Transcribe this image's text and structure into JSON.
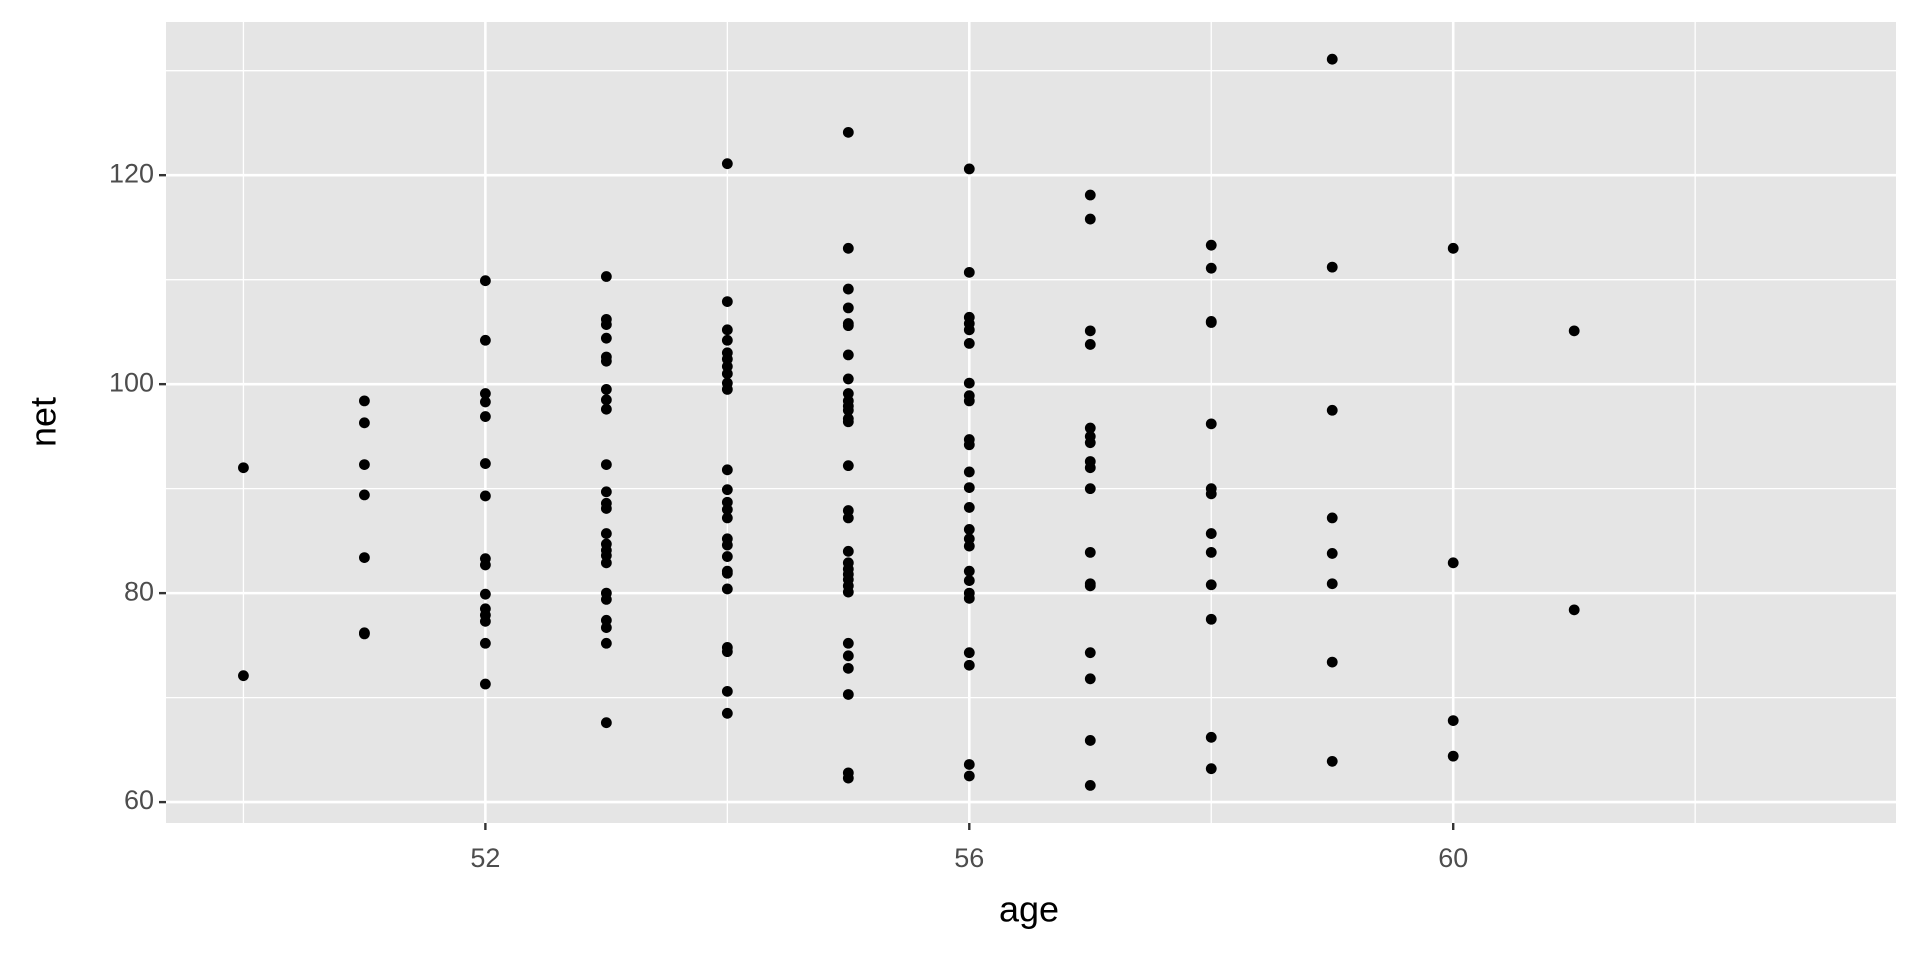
{
  "chart_data": {
    "type": "scatter",
    "x_label": "age",
    "y_label": "net",
    "x": [
      50,
      50,
      51,
      51,
      51,
      51,
      51,
      51,
      51,
      52,
      52,
      52,
      52,
      52,
      52,
      52,
      52,
      52,
      52,
      52,
      52,
      52,
      52,
      52,
      53,
      53,
      53,
      53,
      53,
      53,
      53,
      53,
      53,
      53,
      53,
      53,
      53,
      53,
      53,
      53,
      53,
      53,
      53,
      53,
      53,
      53,
      53,
      53,
      54,
      54,
      54,
      54,
      54,
      54,
      54,
      54,
      54,
      54,
      54,
      54,
      54,
      54,
      54,
      54,
      54,
      54,
      54,
      54,
      54,
      54,
      54,
      54,
      54,
      55,
      55,
      55,
      55,
      55,
      55,
      55,
      55,
      55,
      55,
      55,
      55,
      55,
      55,
      55,
      55,
      55,
      55,
      55,
      55,
      55,
      55,
      55,
      55,
      55,
      55,
      55,
      55,
      55,
      55,
      56,
      56,
      56,
      56,
      56,
      56,
      56,
      56,
      56,
      56,
      56,
      56,
      56,
      56,
      56,
      56,
      56,
      56,
      56,
      56,
      56,
      56,
      56,
      56,
      56,
      57,
      57,
      57,
      57,
      57,
      57,
      57,
      57,
      57,
      57,
      57,
      57,
      57,
      57,
      57,
      57,
      57,
      58,
      58,
      58,
      58,
      58,
      58,
      58,
      58,
      58,
      58,
      58,
      58,
      58,
      59,
      59,
      59,
      59,
      59,
      59,
      59,
      59,
      60,
      60,
      60,
      60,
      61,
      61
    ],
    "y": [
      92.0,
      72.1,
      98.4,
      96.3,
      92.3,
      89.4,
      83.4,
      76.2,
      76.1,
      109.9,
      104.2,
      99.1,
      98.3,
      96.9,
      92.4,
      89.3,
      83.3,
      82.7,
      79.9,
      78.5,
      77.9,
      77.3,
      75.2,
      71.3,
      110.3,
      106.2,
      105.7,
      104.4,
      102.6,
      102.2,
      99.5,
      98.5,
      97.6,
      92.3,
      89.7,
      88.6,
      88.1,
      85.7,
      84.7,
      84.1,
      83.6,
      82.9,
      80.0,
      79.4,
      77.4,
      76.7,
      75.2,
      67.6,
      121.1,
      107.9,
      105.2,
      104.2,
      103.0,
      102.4,
      101.7,
      101.0,
      100.1,
      99.5,
      91.8,
      89.9,
      88.7,
      88.0,
      87.2,
      85.2,
      84.6,
      83.5,
      82.1,
      81.9,
      80.4,
      74.8,
      74.4,
      70.6,
      68.5,
      124.1,
      113.0,
      109.1,
      107.3,
      105.8,
      105.6,
      102.8,
      100.5,
      99.1,
      98.4,
      97.9,
      97.5,
      96.7,
      96.4,
      92.2,
      87.9,
      87.2,
      84.0,
      82.9,
      82.3,
      81.8,
      81.3,
      80.7,
      80.1,
      75.2,
      74.0,
      72.8,
      70.3,
      62.8,
      62.3,
      120.6,
      110.7,
      106.4,
      105.8,
      105.2,
      103.9,
      100.1,
      98.9,
      98.4,
      94.7,
      94.2,
      91.6,
      90.1,
      88.2,
      86.1,
      85.2,
      84.5,
      82.1,
      81.2,
      80.0,
      79.5,
      74.3,
      73.1,
      63.6,
      62.5,
      118.1,
      115.8,
      105.1,
      103.8,
      95.8,
      95.0,
      94.4,
      92.6,
      92.0,
      90.0,
      83.9,
      80.9,
      80.7,
      74.3,
      71.8,
      65.9,
      61.6,
      113.3,
      111.1,
      106.0,
      105.9,
      96.2,
      90.0,
      89.5,
      85.7,
      83.9,
      80.8,
      77.5,
      66.2,
      63.2,
      131.1,
      111.2,
      97.5,
      87.2,
      83.8,
      80.9,
      73.4,
      63.9,
      113.0,
      82.9,
      67.8,
      64.4,
      105.1,
      78.4
    ],
    "color": "#000000",
    "xlim": [
      49.36,
      63.66
    ],
    "ylim": [
      58.0,
      134.66
    ],
    "xticks": [
      52,
      56,
      60
    ],
    "yticks": [
      60,
      80,
      100,
      120
    ],
    "grid": true
  }
}
